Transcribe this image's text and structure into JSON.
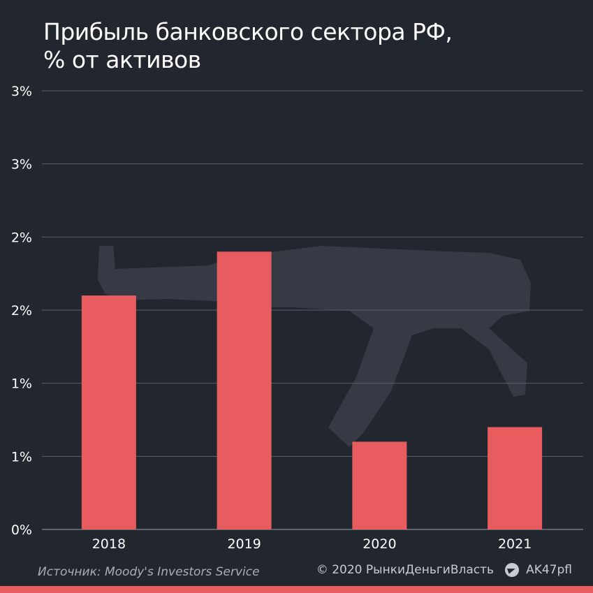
{
  "header": {
    "title_line1": "Прибыль банковского сектора РФ,",
    "title_line2": "% от активов"
  },
  "chart_data": {
    "type": "bar",
    "title": "Прибыль банковского сектора РФ, % от активов",
    "categories": [
      "2018",
      "2019",
      "2020",
      "2021"
    ],
    "values": [
      1.6,
      1.9,
      0.6,
      0.7
    ],
    "ylim": [
      0,
      3
    ],
    "yticks": [
      0,
      0.5,
      1,
      1.5,
      2,
      2.5,
      3
    ],
    "ytick_labels": [
      "0%",
      "1%",
      "1%",
      "2%",
      "2%",
      "3%",
      "3%"
    ],
    "grid": true,
    "bar_color": "#e85c60"
  },
  "footer": {
    "source": "Источник: Moody's Investors Service",
    "copyright": "© 2020  РынкиДеньгиВласть",
    "channel": "AK47pfl"
  },
  "colors": {
    "background": "#22262f",
    "accent": "#e85c60",
    "grid": "#5b606b"
  }
}
